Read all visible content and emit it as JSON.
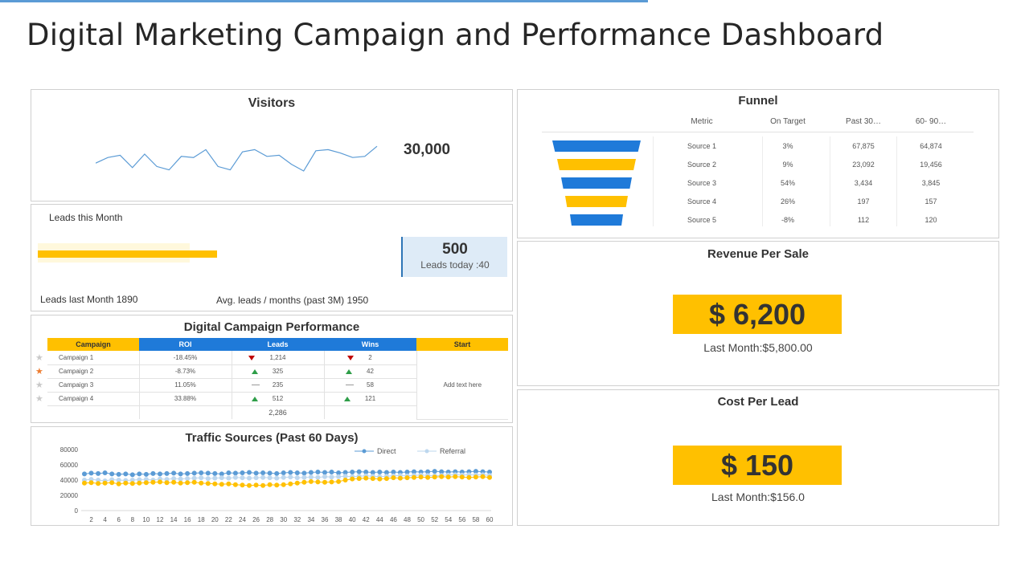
{
  "page": {
    "title": "Digital Marketing Campaign and Performance Dashboard"
  },
  "visitors": {
    "title": "Visitors",
    "value": "30,000",
    "sparkline": [
      12,
      17,
      19,
      8,
      20,
      9,
      6,
      18,
      17,
      24,
      9,
      6,
      22,
      24,
      18,
      19,
      11,
      5,
      23,
      24,
      21,
      17,
      18,
      27
    ]
  },
  "leads": {
    "title": "Leads this Month",
    "today_value": "500",
    "today_label": "Leads today :40",
    "last_month_label": "Leads last Month 1890",
    "avg_label": "Avg.  leads / months (past 3M) 1950",
    "progress_fraction": 0.26,
    "target_fraction": 0.22
  },
  "campaign": {
    "title": "Digital Campaign Performance",
    "headers": [
      "Campaign",
      "ROI",
      "Leads",
      "Wins",
      "Start"
    ],
    "rows": [
      {
        "star": "gray",
        "name": "Campaign  1",
        "roi": "-18.45%",
        "leads_trend": "down",
        "leads": "1,214",
        "wins_trend": "down",
        "wins": "2"
      },
      {
        "star": "orange",
        "name": "Campaign  2",
        "roi": "-8.73%",
        "leads_trend": "up",
        "leads": "325",
        "wins_trend": "up",
        "wins": "42"
      },
      {
        "star": "gray",
        "name": "Campaign  3",
        "roi": "11.05%",
        "leads_trend": "flat",
        "leads": "235",
        "wins_trend": "flat",
        "wins": "58"
      },
      {
        "star": "gray",
        "name": "Campaign  4",
        "roi": "33.88%",
        "leads_trend": "up",
        "leads": "512",
        "wins_trend": "up",
        "wins": "121"
      }
    ],
    "total_leads": "2,286",
    "start_note": "Add text here"
  },
  "traffic": {
    "title": "Traffic Sources  (Past 60 Days)",
    "chart_data": {
      "type": "line",
      "title": "Traffic Sources  (Past 60 Days)",
      "ylim": [
        0,
        80000
      ],
      "yticks": [
        "80000",
        "60000",
        "40000",
        "20000",
        "0"
      ],
      "xticks": [
        "2",
        "4",
        "6",
        "8",
        "10",
        "12",
        "14",
        "16",
        "18",
        "20",
        "22",
        "24",
        "26",
        "28",
        "30",
        "32",
        "34",
        "36",
        "38",
        "40",
        "42",
        "44",
        "46",
        "48",
        "50",
        "52",
        "54",
        "56",
        "58",
        "60"
      ],
      "series": [
        {
          "name": "Direct",
          "color": "#5b9bd5",
          "values": [
            48000,
            49000,
            48500,
            49500,
            48000,
            47500,
            48000,
            47000,
            48000,
            47500,
            48500,
            48000,
            48500,
            49000,
            48000,
            48500,
            49000,
            49500,
            49000,
            48500,
            48000,
            49500,
            49000,
            49500,
            50000,
            49000,
            49500,
            49000,
            48500,
            49500,
            50000,
            49500,
            49000,
            50000,
            50500,
            50000,
            50500,
            49500,
            50000,
            50500,
            51000,
            50500,
            50000,
            50500,
            50000,
            50500,
            50000,
            50500,
            51000,
            50500,
            51000,
            51500,
            51000,
            50500,
            51000,
            50500,
            51000,
            51500,
            51000,
            50500
          ]
        },
        {
          "name": "Referral",
          "color": "#bdd7ee",
          "values": [
            40000,
            41000,
            40000,
            39000,
            40500,
            40000,
            39500,
            40000,
            40500,
            41000,
            40000,
            41500,
            41000,
            42000,
            41500,
            42000,
            42500,
            43000,
            42000,
            42500,
            43000,
            42500,
            43500,
            43000,
            42500,
            43000,
            43500,
            43000,
            42500,
            43500,
            44000,
            43000,
            43500,
            44000,
            43500,
            44500,
            44000,
            44500,
            45000,
            44500,
            45000,
            45500,
            45000,
            44500,
            45000,
            45500,
            46000,
            45500,
            46000,
            46500,
            46000,
            45500,
            46000,
            46500,
            47000,
            46500,
            47000,
            46500,
            47000,
            46000
          ]
        },
        {
          "name": "",
          "color": "#ffc000",
          "values": [
            36000,
            36500,
            35500,
            36000,
            36500,
            35000,
            36000,
            35500,
            36000,
            36500,
            37000,
            37500,
            36500,
            37000,
            36000,
            36500,
            37000,
            36000,
            35500,
            35000,
            34500,
            35000,
            34000,
            33500,
            33000,
            33500,
            33000,
            34000,
            33500,
            34000,
            35000,
            36000,
            37000,
            38000,
            37500,
            37000,
            37500,
            38000,
            40000,
            41500,
            42000,
            42500,
            42000,
            41500,
            42000,
            43000,
            42500,
            43000,
            43500,
            44000,
            43500,
            44000,
            44500,
            44000,
            44500,
            44000,
            43500,
            44000,
            44500,
            43500
          ]
        }
      ]
    }
  },
  "funnel": {
    "title": "Funnel",
    "headers": [
      "Metric",
      "On Target",
      "Past 30…",
      "60- 90…"
    ],
    "rows": [
      {
        "metric": "Source 1",
        "on_target": "3%",
        "past30": "67,875",
        "past60_90": "64,874",
        "color": "#1f7ad9"
      },
      {
        "metric": "Source 2",
        "on_target": "9%",
        "past30": "23,092",
        "past60_90": "19,456",
        "color": "#ffc000"
      },
      {
        "metric": "Source 3",
        "on_target": "54%",
        "past30": "3,434",
        "past60_90": "3,845",
        "color": "#1f7ad9"
      },
      {
        "metric": "Source 4",
        "on_target": "26%",
        "past30": "197",
        "past60_90": "157",
        "color": "#ffc000"
      },
      {
        "metric": "Source 5",
        "on_target": "-8%",
        "past30": "112",
        "past60_90": "120",
        "color": "#1f7ad9"
      }
    ]
  },
  "revenue": {
    "title": "Revenue Per Sale",
    "value": "$ 6,200",
    "last_month": "Last Month:$5,800.00"
  },
  "cost": {
    "title": "Cost Per Lead",
    "value": "$ 150",
    "last_month": "Last Month:$156.0"
  }
}
